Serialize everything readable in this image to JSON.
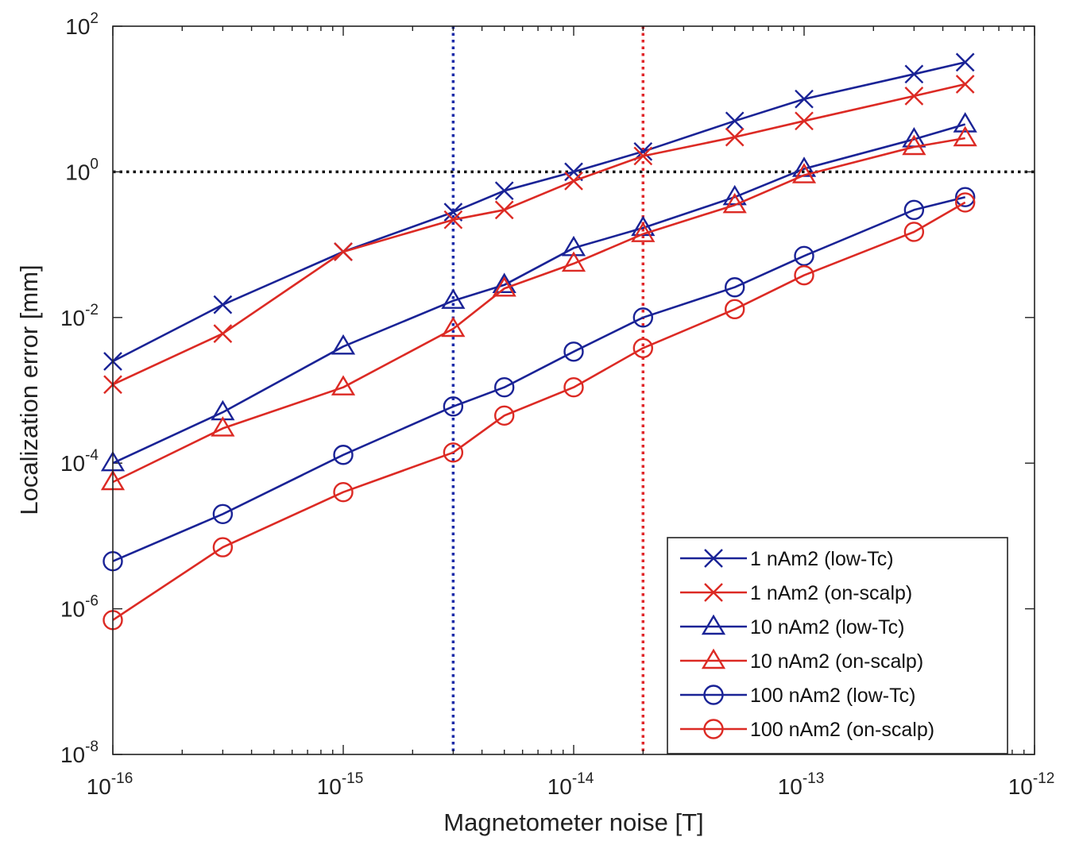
{
  "chart_data": {
    "type": "line",
    "xlabel": "Magnetometer noise [T]",
    "ylabel": "Localization error [mm]",
    "xscale": "log",
    "yscale": "log",
    "xlim": [
      1e-16,
      1e-12
    ],
    "ylim": [
      1e-08,
      100
    ],
    "x_ticks": [
      {
        "base": "10",
        "exp": "-16",
        "value": 1e-16
      },
      {
        "base": "10",
        "exp": "-15",
        "value": 1e-15
      },
      {
        "base": "10",
        "exp": "-14",
        "value": 1e-14
      },
      {
        "base": "10",
        "exp": "-13",
        "value": 1e-13
      },
      {
        "base": "10",
        "exp": "-12",
        "value": 1e-12
      }
    ],
    "y_ticks": [
      {
        "base": "10",
        "exp": "-8",
        "value": 1e-08
      },
      {
        "base": "10",
        "exp": "-6",
        "value": 1e-06
      },
      {
        "base": "10",
        "exp": "-4",
        "value": 0.0001
      },
      {
        "base": "10",
        "exp": "-2",
        "value": 0.01
      },
      {
        "base": "10",
        "exp": "0",
        "value": 1
      },
      {
        "base": "10",
        "exp": "2",
        "value": 100
      }
    ],
    "grid": false,
    "legend_position": "bottom-right",
    "reference_lines": [
      {
        "orientation": "horizontal",
        "value": 1,
        "color": "#111111",
        "style": "dotted"
      },
      {
        "orientation": "vertical",
        "value": 3e-15,
        "color": "#1a2ba8",
        "style": "dotted"
      },
      {
        "orientation": "vertical",
        "value": 2e-14,
        "color": "#e0262a",
        "style": "dotted"
      }
    ],
    "series": [
      {
        "name": "1 nAm2 (low-Tc)",
        "color": "#1a2396",
        "marker": "x",
        "x": [
          1e-16,
          3e-16,
          1e-15,
          3e-15,
          5e-15,
          1e-14,
          2e-14,
          5e-14,
          1e-13,
          3e-13,
          5e-13
        ],
        "y": [
          0.0025,
          0.015,
          0.08,
          0.28,
          0.55,
          1.0,
          1.9,
          5.0,
          10,
          22,
          32
        ]
      },
      {
        "name": "1 nAm2 (on-scalp)",
        "color": "#dc2a24",
        "marker": "x",
        "x": [
          1e-16,
          3e-16,
          1e-15,
          3e-15,
          5e-15,
          1e-14,
          2e-14,
          5e-14,
          1e-13,
          3e-13,
          5e-13
        ],
        "y": [
          0.0012,
          0.006,
          0.08,
          0.22,
          0.3,
          0.75,
          1.65,
          3.0,
          5.0,
          11,
          16
        ]
      },
      {
        "name": "10 nAm2 (low-Tc)",
        "color": "#1a2396",
        "marker": "triangle",
        "x": [
          1e-16,
          3e-16,
          1e-15,
          3e-15,
          5e-15,
          1e-14,
          2e-14,
          5e-14,
          1e-13,
          3e-13,
          5e-13
        ],
        "y": [
          0.0001,
          0.0005,
          0.004,
          0.017,
          0.028,
          0.09,
          0.17,
          0.45,
          1.1,
          2.8,
          4.5
        ]
      },
      {
        "name": "10 nAm2 (on-scalp)",
        "color": "#dc2a24",
        "marker": "triangle",
        "x": [
          1e-16,
          3e-16,
          1e-15,
          3e-15,
          5e-15,
          1e-14,
          2e-14,
          5e-14,
          1e-13,
          3e-13,
          5e-13
        ],
        "y": [
          5.5e-05,
          0.0003,
          0.0011,
          0.007,
          0.025,
          0.055,
          0.14,
          0.35,
          0.9,
          2.2,
          2.9
        ]
      },
      {
        "name": "100 nAm2 (low-Tc)",
        "color": "#1a2396",
        "marker": "circle",
        "x": [
          1e-16,
          3e-16,
          1e-15,
          3e-15,
          5e-15,
          1e-14,
          2e-14,
          5e-14,
          1e-13,
          3e-13,
          5e-13
        ],
        "y": [
          4.5e-06,
          2e-05,
          0.00013,
          0.0006,
          0.0011,
          0.0034,
          0.01,
          0.026,
          0.07,
          0.3,
          0.45
        ]
      },
      {
        "name": "100 nAm2 (on-scalp)",
        "color": "#dc2a24",
        "marker": "circle",
        "x": [
          1e-16,
          3e-16,
          1e-15,
          3e-15,
          5e-15,
          1e-14,
          2e-14,
          5e-14,
          1e-13,
          3e-13,
          5e-13
        ],
        "y": [
          7e-07,
          7e-06,
          4e-05,
          0.00014,
          0.00045,
          0.0011,
          0.0038,
          0.013,
          0.038,
          0.15,
          0.38
        ]
      }
    ]
  }
}
